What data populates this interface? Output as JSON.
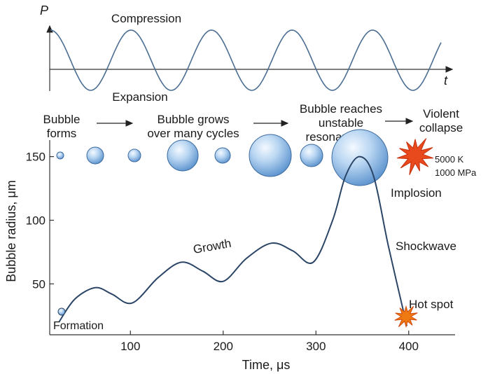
{
  "pressure_wave": {
    "axis_symbol": "P",
    "time_symbol": "t",
    "compression_label": "Compression",
    "expansion_label": "Expansion",
    "cycles_shown": 5
  },
  "stages": {
    "s1_line1": "Bubble",
    "s1_line2": "forms",
    "s2_line1": "Bubble grows",
    "s2_line2": "over many cycles",
    "s3_line1": "Bubble reaches",
    "s3_line2": "unstable",
    "s3_line3": "resonant size",
    "s4_line1": "Violent",
    "s4_line2": "collapse"
  },
  "collapse": {
    "temperature": "5000 K",
    "pressure": "1000 MPa",
    "implosion_label": "Implosion",
    "shockwave_label": "Shockwave",
    "hotspot_label": "Hot spot"
  },
  "chart_data": {
    "type": "line",
    "xlabel": "Time, μs",
    "ylabel": "Bubble radius, μm",
    "x_ticks": [
      100,
      200,
      300,
      400
    ],
    "y_ticks": [
      50,
      100,
      150
    ],
    "xlim": [
      13,
      450
    ],
    "ylim": [
      10,
      163
    ],
    "series": [
      {
        "name": "Bubble radius",
        "x": [
          23,
          40,
          62,
          80,
          102,
          130,
          155,
          178,
          200,
          225,
          252,
          275,
          297,
          318,
          332,
          347,
          362,
          378,
          398
        ],
        "y": [
          20,
          38,
          47,
          42,
          35,
          55,
          67,
          60,
          52,
          70,
          82,
          76,
          67,
          100,
          135,
          150,
          135,
          80,
          17
        ]
      }
    ],
    "bubble_radii": [
      5,
      12,
      9,
      22,
      11,
      30,
      16,
      40
    ],
    "annotations": {
      "formation": "Formation",
      "growth": "Growth"
    }
  }
}
